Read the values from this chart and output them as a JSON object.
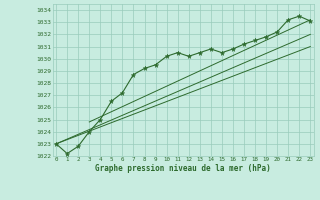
{
  "title": "Graphe pression niveau de la mer (hPa)",
  "background_color": "#c8ece0",
  "grid_color": "#99ccbb",
  "line_color": "#2d6a2d",
  "text_color": "#2d6a2d",
  "ylim": [
    1022,
    1034.5
  ],
  "yticks": [
    1022,
    1023,
    1024,
    1025,
    1026,
    1027,
    1028,
    1029,
    1030,
    1031,
    1032,
    1033,
    1034
  ],
  "xlim": [
    -0.3,
    23.3
  ],
  "xticks": [
    0,
    1,
    2,
    3,
    4,
    5,
    6,
    7,
    8,
    9,
    10,
    11,
    12,
    13,
    14,
    15,
    16,
    17,
    18,
    19,
    20,
    21,
    22,
    23
  ],
  "pressure_data": [
    1023.0,
    1022.2,
    1022.8,
    1024.0,
    1025.0,
    1026.5,
    1027.2,
    1028.7,
    1029.2,
    1029.5,
    1030.2,
    1030.5,
    1030.2,
    1030.5,
    1030.8,
    1030.5,
    1030.8,
    1031.2,
    1031.5,
    1031.8,
    1032.2,
    1033.2,
    1033.5,
    1033.1
  ],
  "trend1": {
    "x": [
      0,
      23
    ],
    "y": [
      1023.0,
      1032.0
    ]
  },
  "trend2": {
    "x": [
      0,
      23
    ],
    "y": [
      1023.0,
      1031.0
    ]
  },
  "trend3": {
    "x": [
      3,
      23
    ],
    "y": [
      1024.8,
      1033.2
    ]
  }
}
